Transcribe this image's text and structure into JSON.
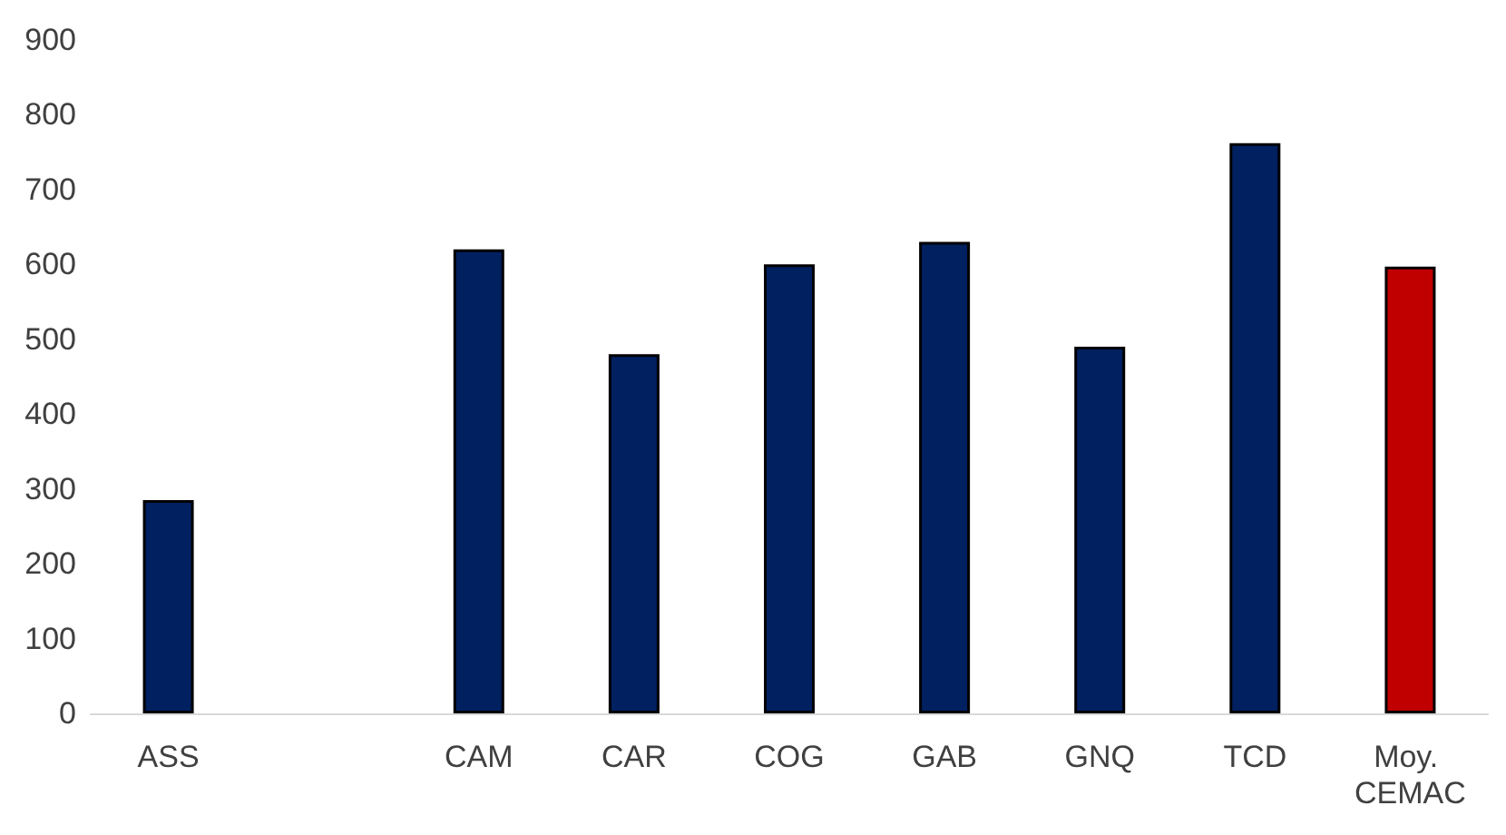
{
  "chart_data": {
    "type": "bar",
    "categories": [
      "ASS",
      null,
      "CAM",
      "CAR",
      "COG",
      "GAB",
      "GNQ",
      "TCD",
      "Moy. CEMAC"
    ],
    "values": [
      285,
      null,
      620,
      480,
      600,
      630,
      490,
      762,
      597
    ],
    "colors": [
      "#002060",
      "#002060",
      "#002060",
      "#002060",
      "#002060",
      "#002060",
      "#002060",
      "#002060",
      "#c00000"
    ],
    "ylim": [
      0,
      900
    ],
    "yticks": [
      0,
      100,
      200,
      300,
      400,
      500,
      600,
      700,
      800,
      900
    ]
  }
}
